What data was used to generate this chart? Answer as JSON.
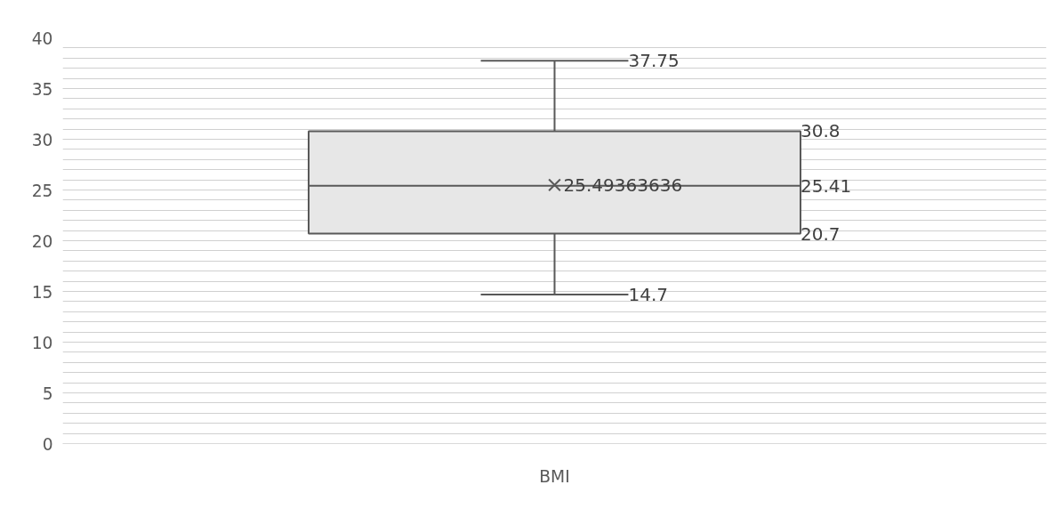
{
  "chart_data": {
    "type": "box",
    "categories": [
      "BMI"
    ],
    "boxes": [
      {
        "low": 14.7,
        "q1": 20.7,
        "median": 25.41,
        "q3": 30.8,
        "high": 37.75,
        "mean": 25.49363636
      }
    ],
    "color": "#e7e7e7",
    "ylim": [
      0,
      40
    ],
    "yticks": [
      0,
      5,
      10,
      15,
      20,
      25,
      30,
      35,
      40
    ],
    "grid": "y",
    "annotations": [
      "37.75",
      "30.8",
      "25.49363636",
      "25.41",
      "20.7",
      "14.7"
    ]
  }
}
